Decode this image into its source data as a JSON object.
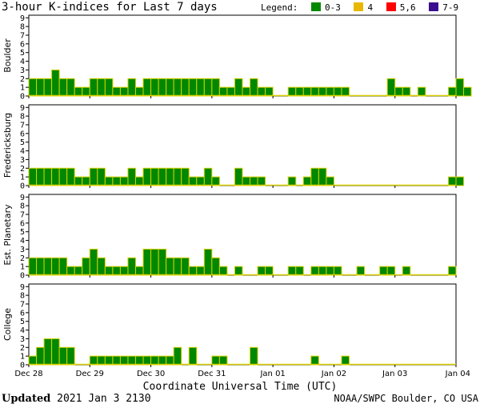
{
  "title": "3-hour K-indices for Last 7 days",
  "legend": {
    "label": "Legend:",
    "items": [
      {
        "label": "0-3",
        "color": "#008800"
      },
      {
        "label": "4",
        "color": "#e8b800"
      },
      {
        "label": "5,6",
        "color": "#ff0000"
      },
      {
        "label": "7-9",
        "color": "#3b0e8f"
      }
    ]
  },
  "footer": {
    "updated_label": "Updated",
    "updated_value": "2021 Jan  3 2130",
    "credit": "NOAA/SWPC Boulder, CO USA"
  },
  "chart_data": {
    "type": "bar",
    "bar_color": "#008800",
    "bar_outline_color": "#d8d000",
    "xlabel": "Coordinate Universal Time (UTC)",
    "x_ticks": [
      "Dec 28",
      "Dec 29",
      "Dec 30",
      "Dec 31",
      "Jan 01",
      "Jan 02",
      "Jan 03",
      "Jan 04"
    ],
    "y_ticks": [
      "0",
      "1",
      "2",
      "3",
      "4",
      "5",
      "6",
      "7",
      "8",
      "9"
    ],
    "ylim": [
      0,
      9
    ],
    "grid": false,
    "bars_per_day": 8,
    "panels": [
      {
        "name": "Boulder",
        "values": [
          2,
          2,
          2,
          3,
          2,
          2,
          1,
          1,
          2,
          2,
          2,
          1,
          1,
          2,
          1,
          2,
          2,
          2,
          2,
          2,
          2,
          2,
          2,
          2,
          2,
          1,
          1,
          2,
          1,
          2,
          1,
          1,
          0,
          0,
          1,
          1,
          1,
          1,
          1,
          1,
          1,
          1,
          0,
          0,
          0,
          0,
          0,
          2,
          1,
          1,
          0,
          1,
          0,
          0,
          0,
          1,
          2,
          1,
          0
        ]
      },
      {
        "name": "Fredericksburg",
        "values": [
          2,
          2,
          2,
          2,
          2,
          2,
          1,
          1,
          2,
          2,
          1,
          1,
          1,
          2,
          1,
          2,
          2,
          2,
          2,
          2,
          2,
          1,
          1,
          2,
          1,
          0,
          0,
          2,
          1,
          1,
          1,
          0,
          0,
          0,
          1,
          0,
          1,
          2,
          2,
          1,
          0,
          0,
          0,
          0,
          0,
          0,
          0,
          0,
          0,
          0,
          0,
          0,
          0,
          0,
          0,
          1,
          1,
          0,
          0
        ]
      },
      {
        "name": "Est. Planetary",
        "values": [
          2,
          2,
          2,
          2,
          2,
          1,
          1,
          2,
          3,
          2,
          1,
          1,
          1,
          2,
          1,
          3,
          3,
          3,
          2,
          2,
          2,
          1,
          1,
          3,
          2,
          1,
          0,
          1,
          0,
          0,
          1,
          1,
          0,
          0,
          1,
          1,
          0,
          1,
          1,
          1,
          1,
          0,
          0,
          1,
          0,
          0,
          1,
          1,
          0,
          1,
          0,
          0,
          0,
          0,
          0,
          1,
          0,
          0,
          0
        ]
      },
      {
        "name": "College",
        "values": [
          1,
          2,
          3,
          3,
          2,
          2,
          0,
          0,
          1,
          1,
          1,
          1,
          1,
          1,
          1,
          1,
          1,
          1,
          1,
          2,
          0,
          2,
          0,
          0,
          1,
          1,
          0,
          0,
          0,
          2,
          0,
          0,
          0,
          0,
          0,
          0,
          0,
          1,
          0,
          0,
          0,
          1,
          0,
          0,
          0,
          0,
          0,
          0,
          0,
          0,
          0,
          0,
          0,
          0,
          0,
          0,
          0,
          0,
          0
        ]
      }
    ]
  }
}
